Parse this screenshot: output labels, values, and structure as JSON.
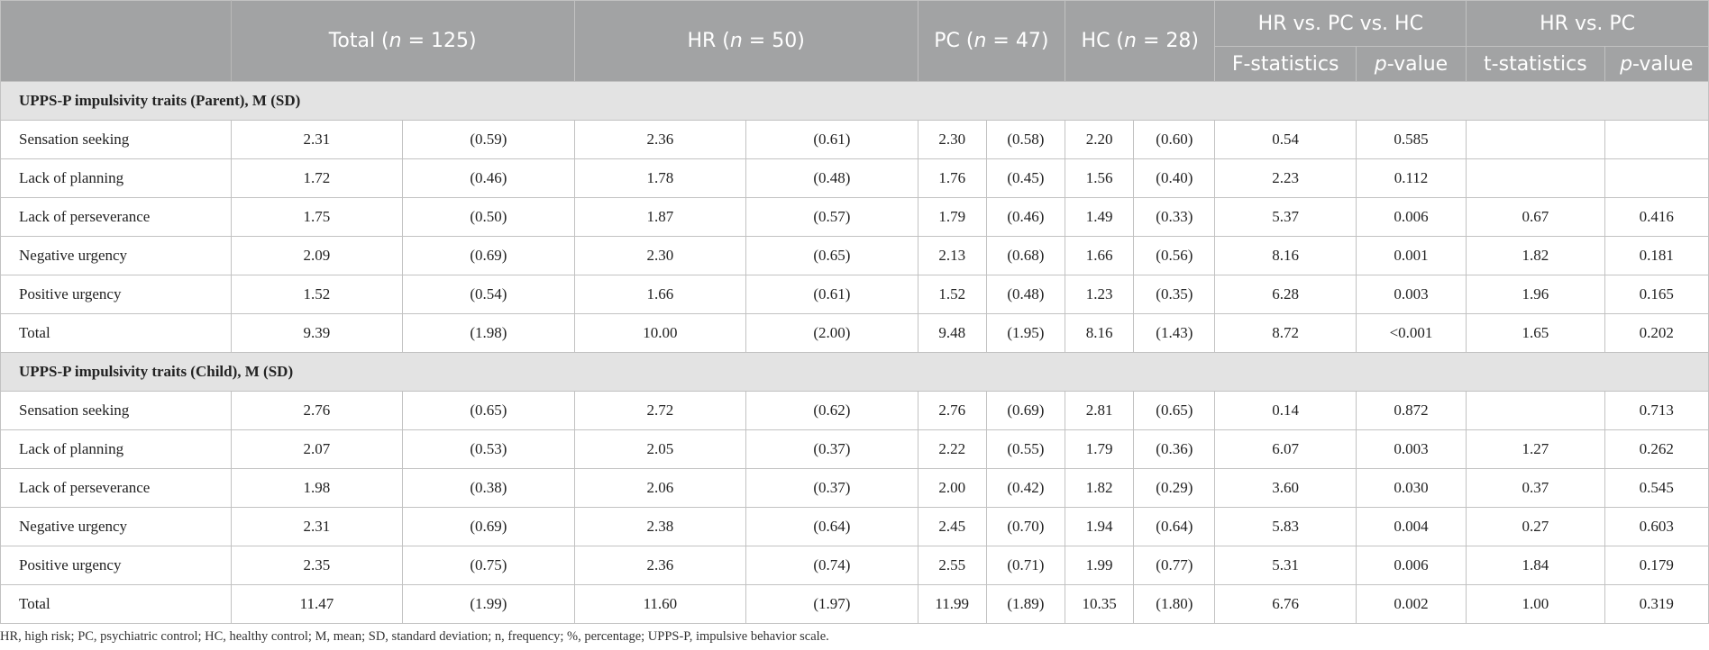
{
  "header": {
    "total": {
      "pre": "Total (",
      "var": "n",
      "post": " = 125)"
    },
    "hr": {
      "pre": "HR (",
      "var": "n",
      "post": " = 50)"
    },
    "pc": {
      "pre": "PC (",
      "var": "n",
      "post": " = 47)"
    },
    "hc": {
      "pre": "HC (",
      "var": "n",
      "post": " = 28)"
    },
    "cmp3": "HR vs. PC vs. HC",
    "cmp2": "HR vs. PC",
    "f_stat": "F-statistics",
    "p_var": "p",
    "p_suffix": "-value",
    "t_stat": "t-statistics"
  },
  "sections": [
    {
      "title": "UPPS-P impulsivity traits (Parent), M (SD)",
      "rows": [
        {
          "label": "Sensation seeking",
          "values": [
            "2.31",
            "(0.59)",
            "2.36",
            "(0.61)",
            "2.30",
            "(0.58)",
            "2.20",
            "(0.60)",
            "0.54",
            "0.585",
            "",
            ""
          ]
        },
        {
          "label": "Lack of planning",
          "values": [
            "1.72",
            "(0.46)",
            "1.78",
            "(0.48)",
            "1.76",
            "(0.45)",
            "1.56",
            "(0.40)",
            "2.23",
            "0.112",
            "",
            ""
          ]
        },
        {
          "label": "Lack of perseverance",
          "values": [
            "1.75",
            "(0.50)",
            "1.87",
            "(0.57)",
            "1.79",
            "(0.46)",
            "1.49",
            "(0.33)",
            "5.37",
            "0.006",
            "0.67",
            "0.416"
          ]
        },
        {
          "label": "Negative urgency",
          "values": [
            "2.09",
            "(0.69)",
            "2.30",
            "(0.65)",
            "2.13",
            "(0.68)",
            "1.66",
            "(0.56)",
            "8.16",
            "0.001",
            "1.82",
            "0.181"
          ]
        },
        {
          "label": "Positive urgency",
          "values": [
            "1.52",
            "(0.54)",
            "1.66",
            "(0.61)",
            "1.52",
            "(0.48)",
            "1.23",
            "(0.35)",
            "6.28",
            "0.003",
            "1.96",
            "0.165"
          ]
        },
        {
          "label": "Total",
          "values": [
            "9.39",
            "(1.98)",
            "10.00",
            "(2.00)",
            "9.48",
            "(1.95)",
            "8.16",
            "(1.43)",
            "8.72",
            "<0.001",
            "1.65",
            "0.202"
          ]
        }
      ]
    },
    {
      "title": "UPPS-P impulsivity traits (Child), M (SD)",
      "rows": [
        {
          "label": "Sensation seeking",
          "values": [
            "2.76",
            "(0.65)",
            "2.72",
            "(0.62)",
            "2.76",
            "(0.69)",
            "2.81",
            "(0.65)",
            "0.14",
            "0.872",
            "",
            "0.713"
          ]
        },
        {
          "label": "Lack of planning",
          "values": [
            "2.07",
            "(0.53)",
            "2.05",
            "(0.37)",
            "2.22",
            "(0.55)",
            "1.79",
            "(0.36)",
            "6.07",
            "0.003",
            "1.27",
            "0.262"
          ]
        },
        {
          "label": "Lack of perseverance",
          "values": [
            "1.98",
            "(0.38)",
            "2.06",
            "(0.37)",
            "2.00",
            "(0.42)",
            "1.82",
            "(0.29)",
            "3.60",
            "0.030",
            "0.37",
            "0.545"
          ]
        },
        {
          "label": "Negative urgency",
          "values": [
            "2.31",
            "(0.69)",
            "2.38",
            "(0.64)",
            "2.45",
            "(0.70)",
            "1.94",
            "(0.64)",
            "5.83",
            "0.004",
            "0.27",
            "0.603"
          ]
        },
        {
          "label": "Positive urgency",
          "values": [
            "2.35",
            "(0.75)",
            "2.36",
            "(0.74)",
            "2.55",
            "(0.71)",
            "1.99",
            "(0.77)",
            "5.31",
            "0.006",
            "1.84",
            "0.179"
          ]
        },
        {
          "label": "Total",
          "values": [
            "11.47",
            "(1.99)",
            "11.60",
            "(1.97)",
            "11.99",
            "(1.89)",
            "10.35",
            "(1.80)",
            "6.76",
            "0.002",
            "1.00",
            "0.319"
          ]
        }
      ]
    }
  ],
  "footnote": "HR, high risk; PC, psychiatric control; HC, healthy control; M, mean; SD, standard deviation; n, frequency; %, percentage; UPPS-P, impulsive behavior scale."
}
